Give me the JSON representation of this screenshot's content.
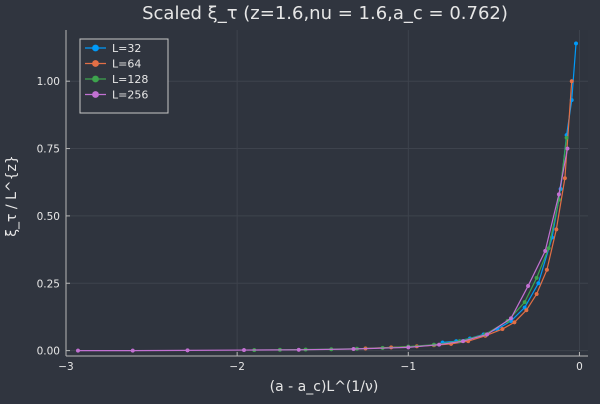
{
  "chart_data": {
    "type": "line",
    "title": "Scaled ξ_τ (z=1.6,nu = 1.6,a_c = 0.762)",
    "xlabel": "(a - a_c)L^(1/ν)",
    "ylabel": "ξ_τ / L^{z}",
    "xlim": [
      -3.0,
      0.05
    ],
    "ylim": [
      -0.02,
      1.19
    ],
    "x_ticks": [
      -3,
      -2,
      -1,
      0
    ],
    "x_tick_labels": [
      "−3",
      "−2",
      "−1",
      "0"
    ],
    "y_ticks": [
      0.0,
      0.25,
      0.5,
      0.75,
      1.0
    ],
    "y_tick_labels": [
      "0.00",
      "0.25",
      "0.50",
      "0.75",
      "1.00"
    ],
    "grid": true,
    "legend_position": "top-left",
    "colors": {
      "background": "#30353f",
      "plot_background": "#2f343e",
      "axis": "#b7b7b7",
      "grid": "#3e434d",
      "text": "#e6e6e6"
    },
    "series": [
      {
        "name": "L=32",
        "color": "#009af9",
        "x": [
          -0.8,
          -0.72,
          -0.64,
          -0.56,
          -0.48,
          -0.4,
          -0.32,
          -0.24,
          -0.16,
          -0.11,
          -0.075,
          -0.045,
          -0.02
        ],
        "y": [
          0.03,
          0.035,
          0.045,
          0.06,
          0.08,
          0.11,
          0.16,
          0.25,
          0.42,
          0.6,
          0.8,
          0.93,
          1.14
        ]
      },
      {
        "name": "L=64",
        "color": "#e26f46",
        "x": [
          -1.25,
          -1.1,
          -0.95,
          -0.85,
          -0.75,
          -0.65,
          -0.55,
          -0.45,
          -0.38,
          -0.31,
          -0.25,
          -0.19,
          -0.135,
          -0.085,
          -0.045
        ],
        "y": [
          0.008,
          0.012,
          0.016,
          0.02,
          0.025,
          0.035,
          0.055,
          0.08,
          0.105,
          0.15,
          0.21,
          0.3,
          0.45,
          0.64,
          1.0
        ]
      },
      {
        "name": "L=128",
        "color": "#3da44d",
        "x": [
          -1.9,
          -1.75,
          -1.6,
          -1.45,
          -1.3,
          -1.15,
          -1.0,
          -0.85,
          -0.7,
          -0.55,
          -0.42,
          -0.32,
          -0.25,
          -0.18,
          -0.12,
          -0.075
        ],
        "y": [
          0.002,
          0.003,
          0.004,
          0.005,
          0.007,
          0.01,
          0.015,
          0.022,
          0.035,
          0.06,
          0.11,
          0.18,
          0.27,
          0.38,
          0.56,
          0.79
        ]
      },
      {
        "name": "L=256",
        "color": "#c271d2",
        "x": [
          -2.93,
          -2.61,
          -2.29,
          -1.96,
          -1.64,
          -1.32,
          -1.0,
          -0.82,
          -0.68,
          -0.54,
          -0.4,
          -0.3,
          -0.2,
          -0.12,
          -0.07
        ],
        "y": [
          0.0,
          0.0,
          0.001,
          0.002,
          0.003,
          0.006,
          0.012,
          0.022,
          0.035,
          0.06,
          0.12,
          0.24,
          0.37,
          0.58,
          0.75
        ]
      }
    ]
  }
}
